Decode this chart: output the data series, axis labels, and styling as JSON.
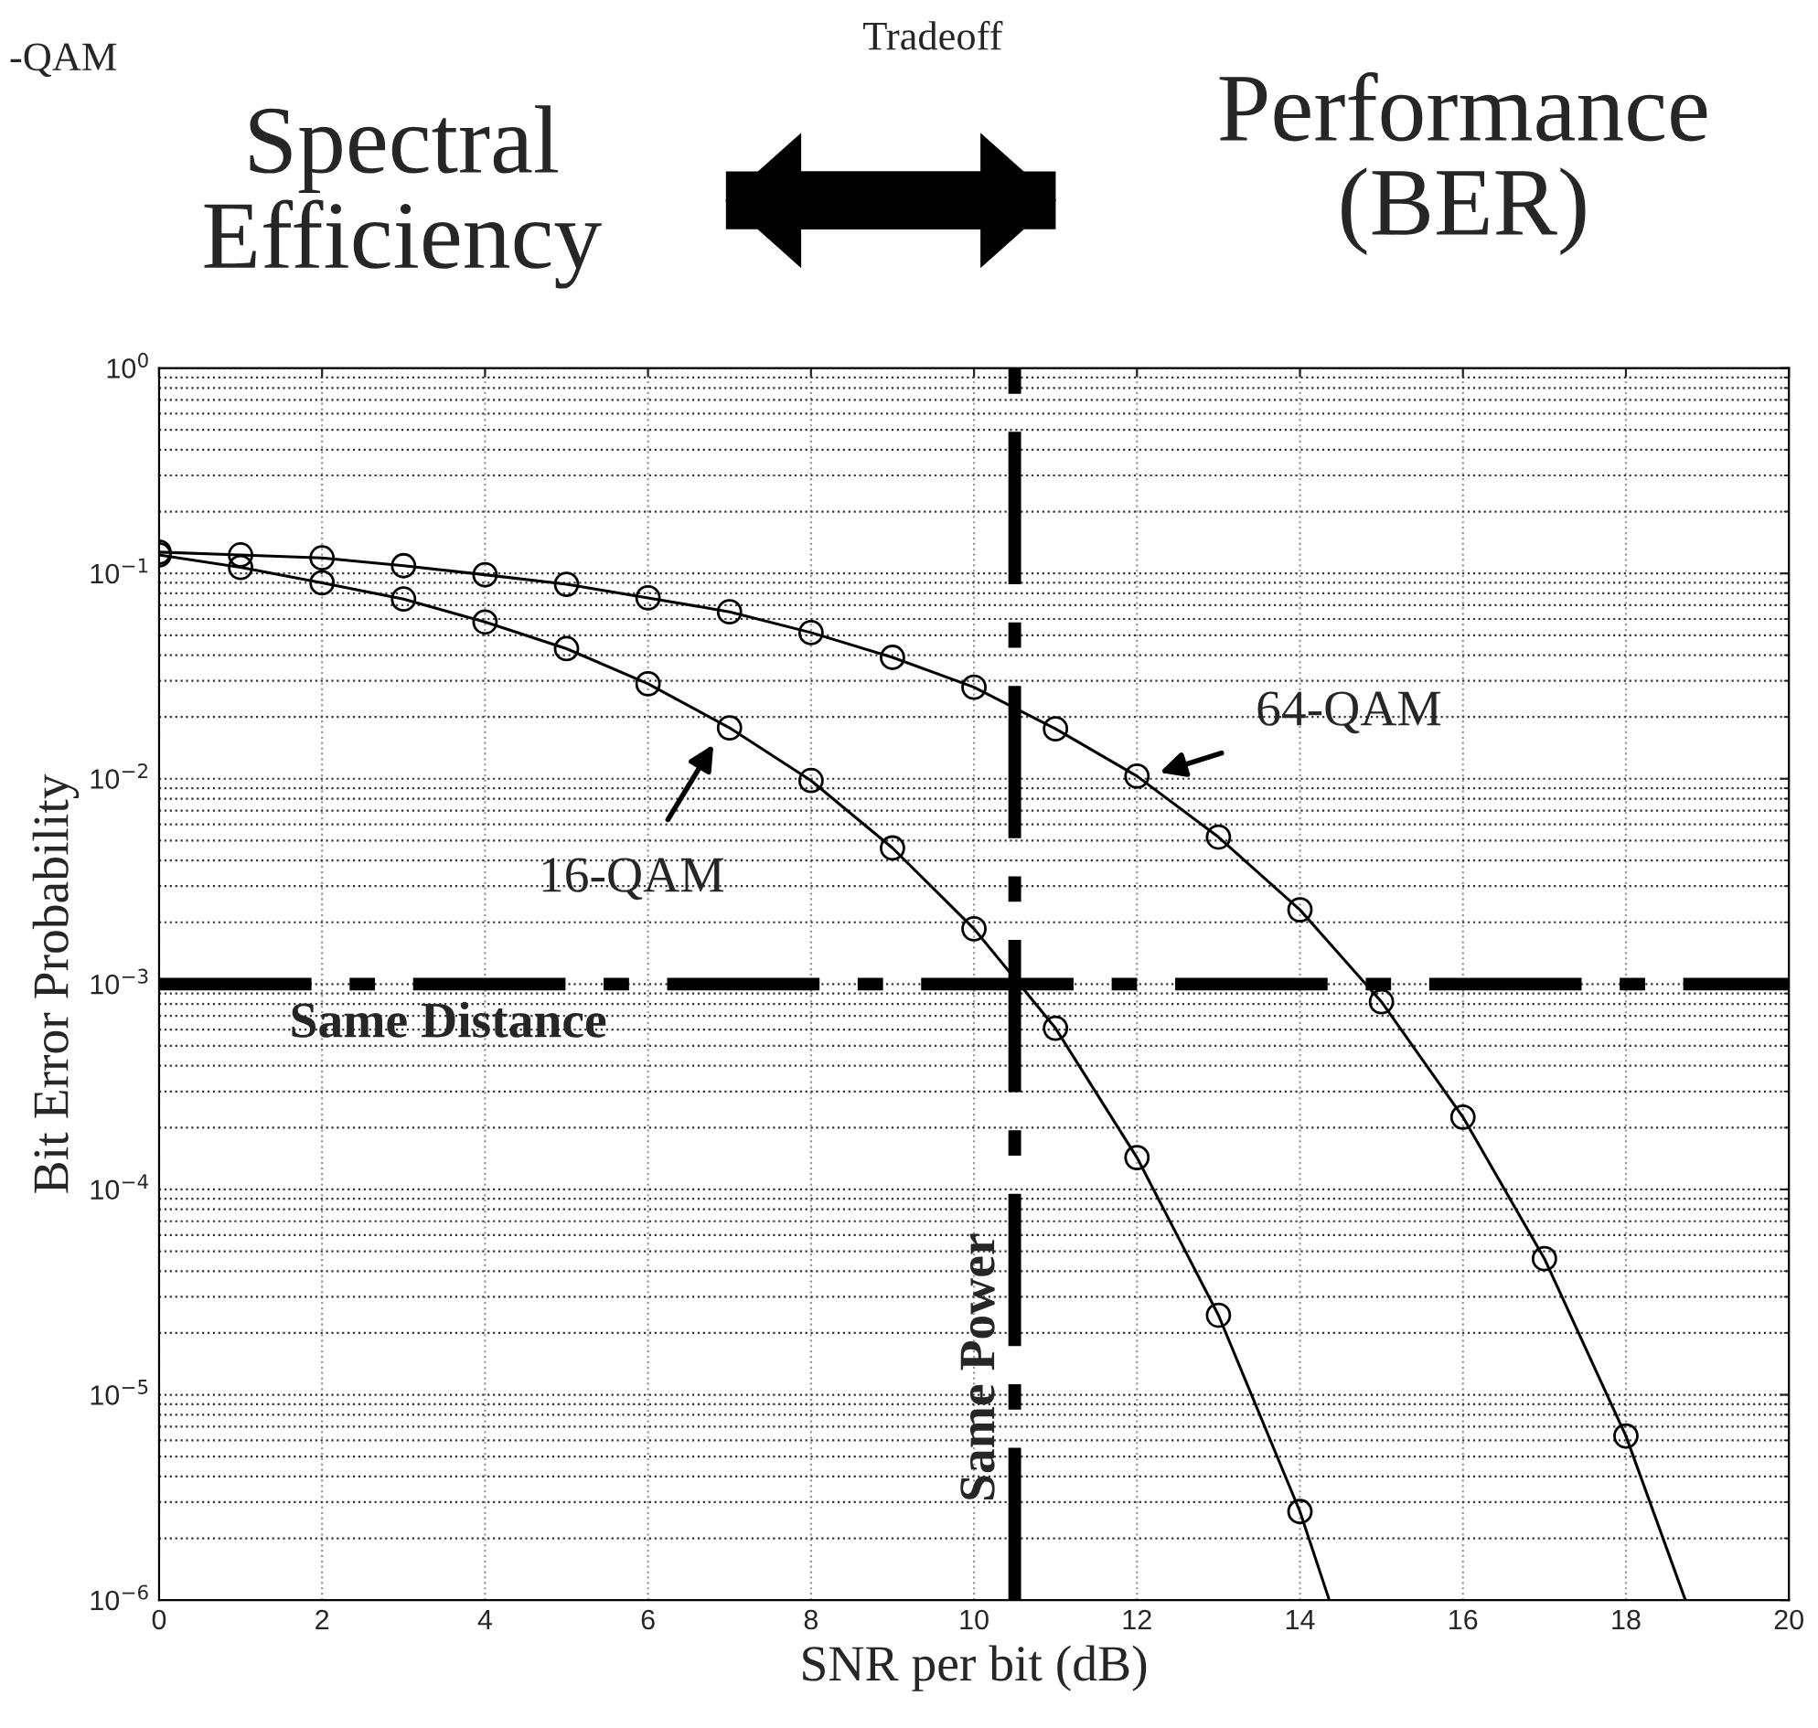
{
  "chart_data": {
    "type": "line",
    "xlabel": "SNR per bit (dB)",
    "ylabel": "Bit Error Probability",
    "log": "y",
    "grid": true,
    "marker": "circle",
    "line_style": "solid",
    "xlim": [
      0,
      20
    ],
    "xticks": [
      0,
      2,
      4,
      6,
      8,
      10,
      12,
      14,
      16,
      18,
      20
    ],
    "ylim": [
      1e-06,
      1
    ],
    "yticks": [
      {
        "value": 1e-06,
        "label": "10$^{−6}$"
      },
      {
        "value": 1e-05,
        "label": "10$^{−5}$"
      },
      {
        "value": 0.0001,
        "label": "10$^{−4}$"
      },
      {
        "value": 0.001,
        "label": "10$^{−3}$"
      },
      {
        "value": 0.01,
        "label": "10$^{−2}$"
      },
      {
        "value": 0.1,
        "label": "10$^{−1}$"
      },
      {
        "value": 1,
        "label": "10$^{0}$"
      }
    ],
    "series": [
      {
        "color": "#000000",
        "x": [
          0,
          1,
          2,
          3,
          4,
          5,
          6,
          7,
          8,
          9,
          10,
          11,
          12,
          13,
          14,
          15,
          16,
          17,
          18
        ],
        "values": [
          0.127,
          0.123,
          0.119,
          0.109,
          0.0985,
          0.0885,
          0.076,
          0.065,
          0.0515,
          0.039,
          0.0279,
          0.0175,
          0.0103,
          0.0052,
          0.0023,
          0.00082,
          0.000225,
          4.6e-05,
          6.3e-06
        ]
      },
      {
        "type": "line",
        "marker": "none",
        "color": "#000000",
        "x": [
          18,
          18.73
        ],
        "values": [
          6.3e-06,
          1e-06
        ]
      },
      {
        "color": "#000000",
        "x": [
          0,
          1,
          2,
          3,
          4,
          5,
          6,
          7,
          8,
          9,
          10,
          11,
          12,
          13,
          14
        ],
        "values": [
          0.123,
          0.107,
          0.09,
          0.075,
          0.058,
          0.043,
          0.029,
          0.0177,
          0.0098,
          0.0046,
          0.00186,
          0.00061,
          0.000143,
          2.44e-05,
          2.7e-06
        ]
      },
      {
        "type": "line",
        "marker": "none",
        "color": "#000000",
        "x": [
          14,
          14.36
        ],
        "values": [
          2.7e-06,
          1e-06
        ]
      }
    ],
    "ref_lines": [
      {
        "axis": "y",
        "value": 0.001,
        "label": "Same Distance",
        "line_style": "dashdot",
        "color": "#000000"
      },
      {
        "axis": "x",
        "value": 10.5,
        "label": "Same Power",
        "line_style": "dashdot",
        "color": "#000000"
      }
    ],
    "annotations": [
      "16-QAM",
      "64-QAM",
      "-QAM",
      "Tradeoff",
      "Spectral\nEfficiency",
      "Performance\n(BER)"
    ],
    "legend": false
  }
}
